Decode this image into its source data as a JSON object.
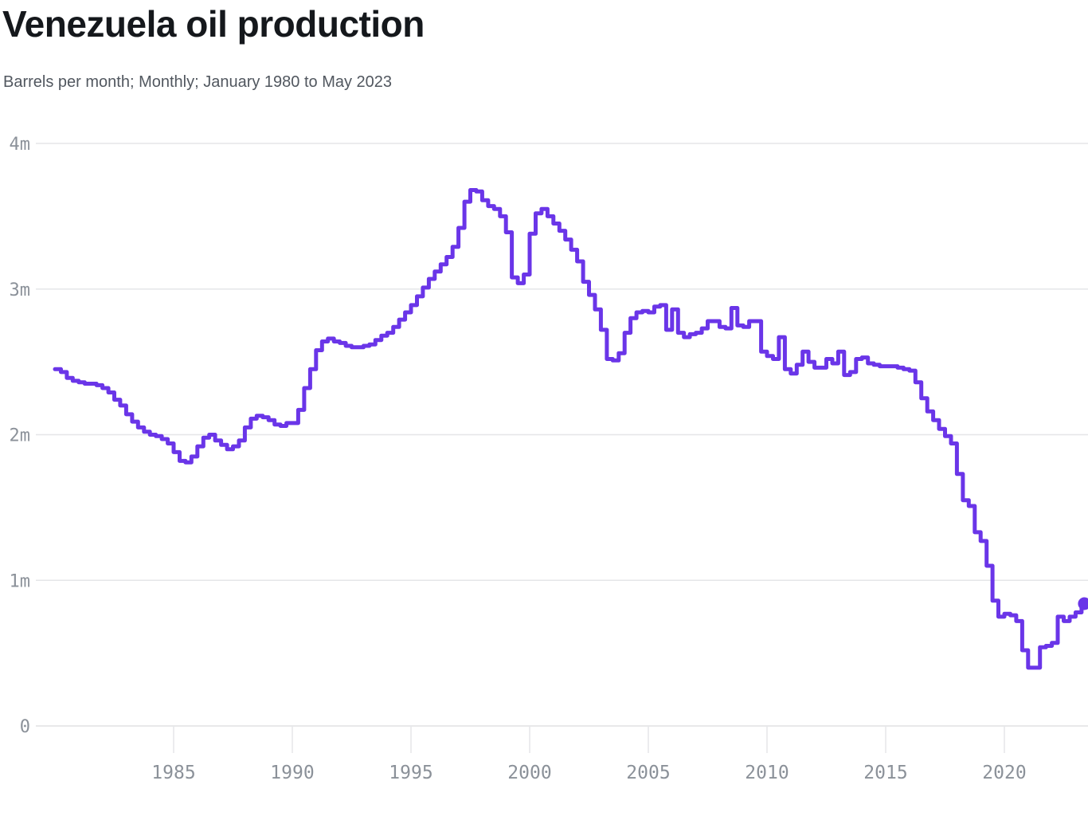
{
  "header": {
    "title": "Venezuela oil production",
    "subtitle": "Barrels per month; Monthly; January 1980 to May 2023"
  },
  "chart_data": {
    "type": "line",
    "title": "Venezuela oil production",
    "subtitle": "Barrels per month; Monthly; January 1980 to May 2023",
    "xlabel": "",
    "ylabel": "",
    "unit": "millions of barrels",
    "line_style": "step",
    "grid": "horizontal-only",
    "legend": "none",
    "line_color": "#6a35e8",
    "grid_color": "#e5e6e8",
    "axis_color": "#e0e1e4",
    "tick_text_color": "#8b9199",
    "ylim": [
      0,
      4
    ],
    "y_ticks": [
      {
        "value": 0,
        "label": "0"
      },
      {
        "value": 1,
        "label": "1m"
      },
      {
        "value": 2,
        "label": "2m"
      },
      {
        "value": 3,
        "label": "3m"
      },
      {
        "value": 4,
        "label": "4m"
      }
    ],
    "x_ticks": [
      {
        "year": 1985,
        "label": "1985"
      },
      {
        "year": 1990,
        "label": "1990"
      },
      {
        "year": 1995,
        "label": "1995"
      },
      {
        "year": 2000,
        "label": "2000"
      },
      {
        "year": 2005,
        "label": "2005"
      },
      {
        "year": 2010,
        "label": "2010"
      },
      {
        "year": 2015,
        "label": "2015"
      },
      {
        "year": 2020,
        "label": "2020"
      }
    ],
    "x_start": 1980,
    "dx_years": 0.25,
    "series": [
      {
        "name": "Venezuela oil production (million barrels)",
        "values": [
          2.45,
          2.43,
          2.39,
          2.37,
          2.36,
          2.35,
          2.35,
          2.34,
          2.32,
          2.29,
          2.24,
          2.2,
          2.14,
          2.09,
          2.05,
          2.02,
          2.0,
          1.99,
          1.97,
          1.94,
          1.88,
          1.82,
          1.81,
          1.85,
          1.92,
          1.98,
          2.0,
          1.96,
          1.93,
          1.9,
          1.92,
          1.96,
          2.05,
          2.11,
          2.13,
          2.12,
          2.1,
          2.07,
          2.06,
          2.08,
          2.08,
          2.17,
          2.32,
          2.45,
          2.58,
          2.64,
          2.66,
          2.64,
          2.63,
          2.61,
          2.6,
          2.6,
          2.61,
          2.62,
          2.65,
          2.68,
          2.7,
          2.74,
          2.79,
          2.84,
          2.89,
          2.95,
          3.01,
          3.07,
          3.12,
          3.17,
          3.22,
          3.29,
          3.42,
          3.6,
          3.68,
          3.67,
          3.61,
          3.57,
          3.55,
          3.5,
          3.39,
          3.08,
          3.04,
          3.1,
          3.38,
          3.52,
          3.55,
          3.5,
          3.45,
          3.4,
          3.34,
          3.27,
          3.19,
          3.05,
          2.96,
          2.86,
          2.72,
          2.52,
          2.51,
          2.56,
          2.7,
          2.8,
          2.84,
          2.85,
          2.84,
          2.88,
          2.89,
          2.72,
          2.86,
          2.7,
          2.67,
          2.69,
          2.7,
          2.73,
          2.78,
          2.78,
          2.74,
          2.73,
          2.87,
          2.75,
          2.74,
          2.78,
          2.78,
          2.57,
          2.54,
          2.52,
          2.67,
          2.45,
          2.42,
          2.48,
          2.57,
          2.5,
          2.46,
          2.46,
          2.52,
          2.49,
          2.57,
          2.41,
          2.43,
          2.52,
          2.53,
          2.49,
          2.48,
          2.47,
          2.47,
          2.47,
          2.46,
          2.45,
          2.44,
          2.36,
          2.25,
          2.16,
          2.1,
          2.04,
          1.99,
          1.94,
          1.73,
          1.55,
          1.51,
          1.33,
          1.27,
          1.1,
          0.86,
          0.75,
          0.77,
          0.76,
          0.72,
          0.52,
          0.4,
          0.4,
          0.54,
          0.55,
          0.57,
          0.75,
          0.72,
          0.75,
          0.78,
          0.81
        ]
      }
    ],
    "last_point": {
      "x": 2023.37,
      "value": 0.84,
      "marker": "dot"
    }
  }
}
